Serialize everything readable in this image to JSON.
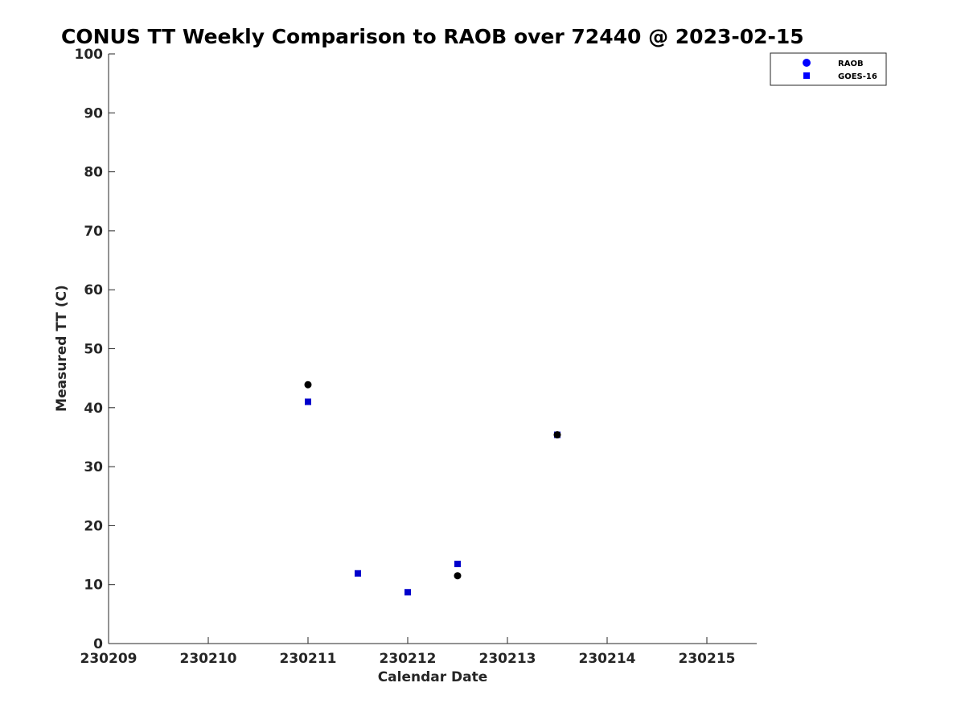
{
  "chart_data": {
    "type": "scatter",
    "title": "CONUS TT Weekly Comparison to RAOB over 72440 @ 2023-02-15",
    "xlabel": "Calendar Date",
    "ylabel": "Measured TT (C)",
    "xlim": [
      230209,
      230215.5
    ],
    "ylim": [
      0,
      100
    ],
    "xticks": [
      {
        "value": 230209,
        "label": "230209"
      },
      {
        "value": 230210,
        "label": "230210"
      },
      {
        "value": 230211,
        "label": "230211"
      },
      {
        "value": 230212,
        "label": "230212"
      },
      {
        "value": 230213,
        "label": "230213"
      },
      {
        "value": 230214,
        "label": "230214"
      },
      {
        "value": 230215,
        "label": "230215"
      }
    ],
    "yticks": [
      {
        "value": 0,
        "label": "0"
      },
      {
        "value": 10,
        "label": "10"
      },
      {
        "value": 20,
        "label": "20"
      },
      {
        "value": 30,
        "label": "30"
      },
      {
        "value": 40,
        "label": "40"
      },
      {
        "value": 50,
        "label": "50"
      },
      {
        "value": 60,
        "label": "60"
      },
      {
        "value": 70,
        "label": "70"
      },
      {
        "value": 80,
        "label": "80"
      },
      {
        "value": 90,
        "label": "90"
      },
      {
        "value": 100,
        "label": "100"
      }
    ],
    "grid": false,
    "legend_position": "outside-top-right",
    "series": [
      {
        "name": "RAOB",
        "marker": "circle",
        "legend_color": "#0000ff",
        "point_color": "#000000",
        "points": [
          {
            "x": 230211.0,
            "y": 43.9
          },
          {
            "x": 230212.5,
            "y": 11.5
          },
          {
            "x": 230213.5,
            "y": 35.4
          }
        ]
      },
      {
        "name": "GOES-16",
        "marker": "square",
        "legend_color": "#0000ff",
        "point_color": "#0000cc",
        "points": [
          {
            "x": 230211.0,
            "y": 41.0
          },
          {
            "x": 230211.5,
            "y": 11.9
          },
          {
            "x": 230212.0,
            "y": 8.7
          },
          {
            "x": 230212.5,
            "y": 13.5
          },
          {
            "x": 230213.5,
            "y": 35.4
          }
        ]
      }
    ]
  }
}
